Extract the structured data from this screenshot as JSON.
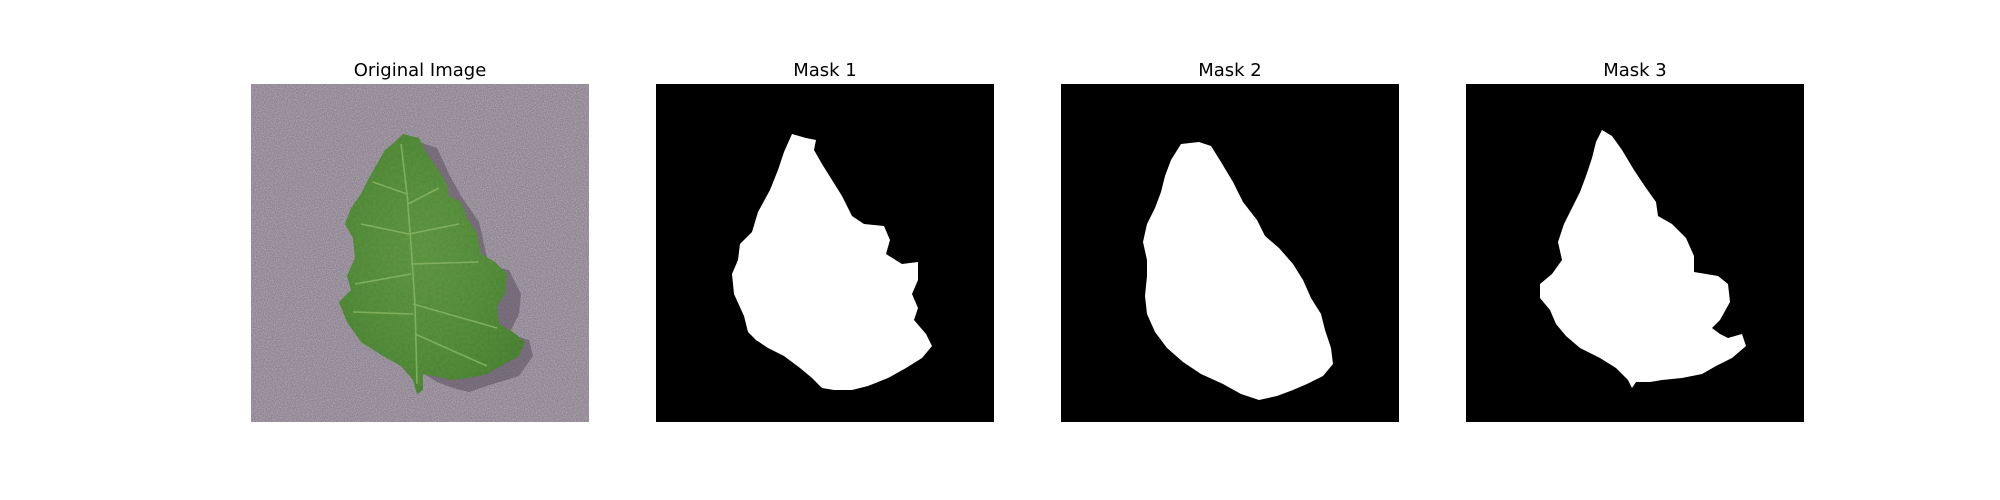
{
  "figure": {
    "panels": [
      {
        "title": "Original Image",
        "content": "photo of a green tomato leaf on a speckled grey-purple surface"
      },
      {
        "title": "Mask 1",
        "content": "binary segmentation mask, white leaf shape on black"
      },
      {
        "title": "Mask 2",
        "content": "binary segmentation mask, white leaf shape on black"
      },
      {
        "title": "Mask 3",
        "content": "binary segmentation mask, white leaf shape on black"
      }
    ],
    "colors": {
      "background": "#ffffff",
      "mask_foreground": "#ffffff",
      "mask_background": "#000000",
      "surface": "#8a7d8b",
      "leaf": "#4f8a35"
    }
  }
}
